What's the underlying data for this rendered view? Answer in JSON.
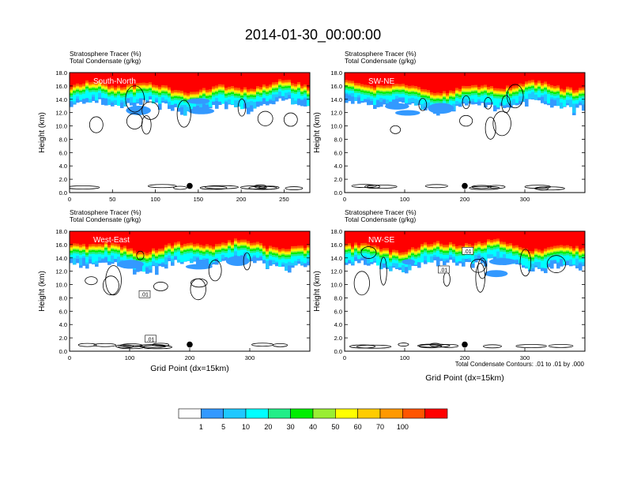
{
  "title": "2014-01-30_00:00:00",
  "panel_header": {
    "line1": "Stratosphere Tracer   (%)",
    "line2": "Total Condensate   (g/kg)"
  },
  "ylabel": "Height (km)",
  "xlabel": "Grid Point (dx=15km)",
  "contour_note": "Total Condensate Contours: .01 to .01 by .000",
  "colorbar": {
    "colors": [
      "#ffffff",
      "#3399ff",
      "#1fc8ff",
      "#00ffff",
      "#22ee88",
      "#00ee00",
      "#99ee33",
      "#ffff00",
      "#ffcc00",
      "#ff9900",
      "#ff5500",
      "#ff0000"
    ],
    "labels": [
      "1",
      "5",
      "10",
      "20",
      "30",
      "40",
      "50",
      "60",
      "70",
      "100"
    ]
  },
  "chart_data": [
    {
      "type": "heatmap",
      "label": "South-North",
      "xlim": [
        0,
        280
      ],
      "xticks": [
        0,
        50,
        100,
        150,
        200,
        250
      ],
      "ylim": [
        0,
        18
      ],
      "yticks": [
        "0.0",
        "2.0",
        "4.0",
        "6.0",
        "8.0",
        "10.0",
        "12.0",
        "14.0",
        "16.0",
        "18.0"
      ],
      "marker_x": 140,
      "contour_labels": []
    },
    {
      "type": "heatmap",
      "label": "SW-NE",
      "xlim": [
        0,
        400
      ],
      "xticks": [
        0,
        100,
        200,
        300
      ],
      "ylim": [
        0,
        18
      ],
      "yticks": [
        "0.0",
        "2.0",
        "4.0",
        "6.0",
        "8.0",
        "10.0",
        "12.0",
        "14.0",
        "16.0",
        "18.0"
      ],
      "marker_x": 200,
      "contour_labels": []
    },
    {
      "type": "heatmap",
      "label": "West-East",
      "xlim": [
        0,
        400
      ],
      "xticks": [
        0,
        100,
        200,
        300
      ],
      "ylim": [
        0,
        18
      ],
      "yticks": [
        "0.0",
        "2.0",
        "4.0",
        "6.0",
        "8.0",
        "10.0",
        "12.0",
        "14.0",
        "16.0",
        "18.0"
      ],
      "marker_x": 200,
      "contour_labels": [
        {
          "text": ".01",
          "x": 125,
          "y": 8.5
        },
        {
          "text": ".01",
          "x": 135,
          "y": 1.8
        }
      ]
    },
    {
      "type": "heatmap",
      "label": "NW-SE",
      "xlim": [
        0,
        400
      ],
      "xticks": [
        0,
        100,
        200,
        300
      ],
      "ylim": [
        0,
        18
      ],
      "yticks": [
        "0.0",
        "2.0",
        "4.0",
        "6.0",
        "8.0",
        "10.0",
        "12.0",
        "14.0",
        "16.0",
        "18.0"
      ],
      "marker_x": 200,
      "contour_labels": [
        {
          "text": ".01",
          "x": 205,
          "y": 15.0
        },
        {
          "text": ".01",
          "x": 165,
          "y": 12.2
        }
      ]
    }
  ]
}
